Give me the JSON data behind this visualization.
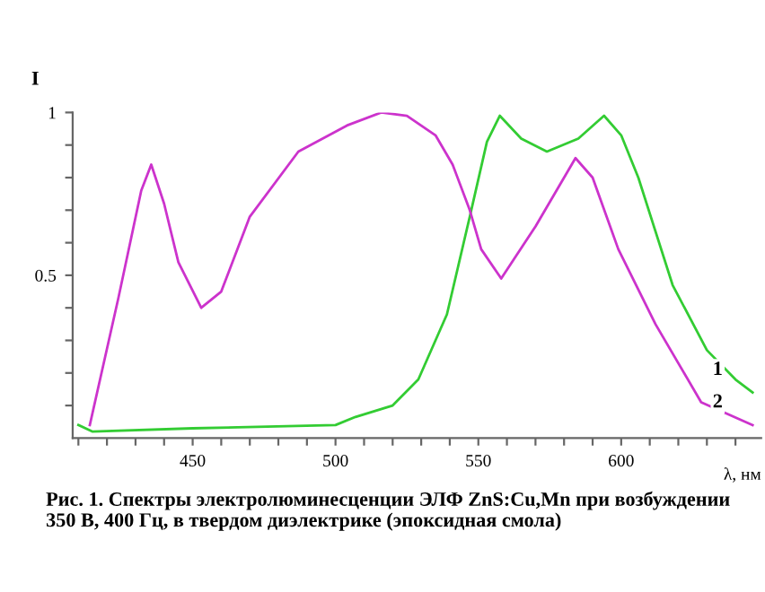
{
  "chart_data": {
    "type": "line",
    "ylabel": "I",
    "xlabel": "λ, нм",
    "series": [
      {
        "name": "1",
        "color": "#33cc33",
        "x": [
          410,
          415,
          450,
          500,
          507,
          520,
          529,
          539,
          547,
          553,
          557.5,
          565,
          574,
          585,
          594,
          600,
          606,
          618,
          630,
          640,
          646
        ],
        "values": [
          0.04,
          0.02,
          0.03,
          0.04,
          0.065,
          0.1,
          0.18,
          0.38,
          0.68,
          0.91,
          0.99,
          0.92,
          0.88,
          0.92,
          0.99,
          0.93,
          0.8,
          0.47,
          0.27,
          0.18,
          0.14
        ]
      },
      {
        "name": "2",
        "color": "#cc33cc",
        "x": [
          414,
          424,
          432,
          435.5,
          440,
          445,
          453,
          460,
          470,
          487,
          504,
          516,
          525,
          535,
          541,
          547,
          551,
          558,
          570,
          584,
          590,
          599,
          612,
          628,
          646
        ],
        "values": [
          0.04,
          0.43,
          0.76,
          0.84,
          0.72,
          0.54,
          0.4,
          0.45,
          0.68,
          0.88,
          0.96,
          1.0,
          0.99,
          0.93,
          0.84,
          0.7,
          0.58,
          0.49,
          0.65,
          0.86,
          0.8,
          0.58,
          0.35,
          0.11,
          0.04
        ]
      }
    ],
    "xlim": [
      408,
      649
    ],
    "ylim": [
      0,
      1.0
    ],
    "xticks": [
      {
        "value": 410,
        "label": null
      },
      {
        "value": 420,
        "label": null
      },
      {
        "value": 430,
        "label": null
      },
      {
        "value": 440,
        "label": null
      },
      450,
      {
        "value": 460,
        "label": null
      },
      {
        "value": 470,
        "label": null
      },
      {
        "value": 480,
        "label": null
      },
      {
        "value": 490,
        "label": null
      },
      500,
      {
        "value": 510,
        "label": null
      },
      {
        "value": 520,
        "label": null
      },
      {
        "value": 530,
        "label": null
      },
      {
        "value": 540,
        "label": null
      },
      550,
      {
        "value": 560,
        "label": null
      },
      {
        "value": 570,
        "label": null
      },
      {
        "value": 580,
        "label": null
      },
      {
        "value": 590,
        "label": null
      },
      600,
      {
        "value": 610,
        "label": null
      },
      {
        "value": 620,
        "label": null
      },
      {
        "value": 630,
        "label": null
      },
      {
        "value": 640,
        "label": null
      }
    ],
    "yticks": [
      {
        "value": 0.1,
        "label": null
      },
      {
        "value": 0.2,
        "label": null
      },
      {
        "value": 0.3,
        "label": null
      },
      {
        "value": 0.4,
        "label": null
      },
      0.5,
      {
        "value": 0.6,
        "label": null
      },
      {
        "value": 0.7,
        "label": null
      },
      {
        "value": 0.8,
        "label": null
      },
      {
        "value": 0.9,
        "label": null
      },
      1
    ],
    "grid": false,
    "legend": false,
    "annotations": [
      "Рис. 1. Спектры электролюминесценции ЭЛФ ZnS:Cu,Mn при возбуждении 350 В, 400 Гц, в твердом диэлектрике (эпоксидная смола)"
    ]
  }
}
